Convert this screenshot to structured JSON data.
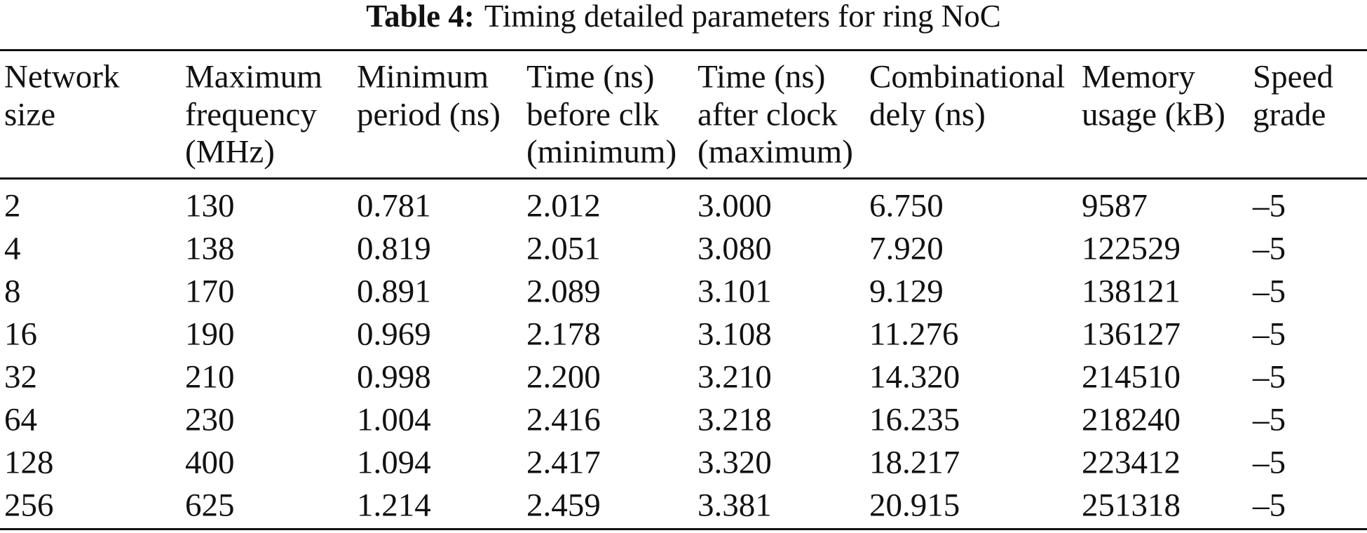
{
  "caption": {
    "label": "Table 4:",
    "text": "Timing detailed parameters for ring NoC"
  },
  "table": {
    "header": [
      [
        "Network",
        "size"
      ],
      [
        "Maximum",
        "frequency",
        "(MHz)"
      ],
      [
        "Minimum",
        "period (ns)"
      ],
      [
        "Time (ns)",
        "before clk",
        "(minimum)"
      ],
      [
        "Time (ns)",
        "after clock",
        "(maximum)"
      ],
      [
        "Combinational",
        "dely (ns)"
      ],
      [
        "Memory",
        "usage (kB)"
      ],
      [
        "Speed",
        "grade"
      ]
    ],
    "rows": [
      [
        "2",
        "130",
        "0.781",
        "2.012",
        "3.000",
        "6.750",
        "9587",
        "–5"
      ],
      [
        "4",
        "138",
        "0.819",
        "2.051",
        "3.080",
        "7.920",
        "122529",
        "–5"
      ],
      [
        "8",
        "170",
        "0.891",
        "2.089",
        "3.101",
        "9.129",
        "138121",
        "–5"
      ],
      [
        "16",
        "190",
        "0.969",
        "2.178",
        "3.108",
        "11.276",
        "136127",
        "–5"
      ],
      [
        "32",
        "210",
        "0.998",
        "2.200",
        "3.210",
        "14.320",
        "214510",
        "–5"
      ],
      [
        "64",
        "230",
        "1.004",
        "2.416",
        "3.218",
        "16.235",
        "218240",
        "–5"
      ],
      [
        "128",
        "400",
        "1.094",
        "2.417",
        "3.320",
        "18.217",
        "223412",
        "–5"
      ],
      [
        "256",
        "625",
        "1.214",
        "2.459",
        "3.381",
        "20.915",
        "251318",
        "–5"
      ]
    ]
  }
}
